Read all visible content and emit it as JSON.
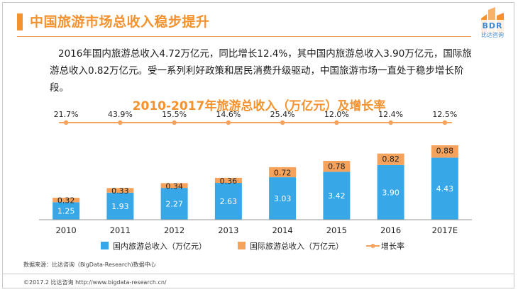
{
  "header": {
    "title": "中国旅游市场总收入稳步提升",
    "logo_text": "BDR",
    "logo_subtitle": "比达咨询"
  },
  "summary": {
    "text": "2016年国内旅游总收入4.72万亿元，同比增长12.4%，其中国内旅游总收入3.90万亿元，国际旅游总收入0.82万亿元。受一系列利好政策和居民消费升级驱动，中国旅游市场一直处于稳步增长阶段。"
  },
  "chart_data": {
    "type": "bar",
    "title": "2010-2017年旅游总收入（万亿元）及增长率",
    "categories": [
      "2010",
      "2011",
      "2012",
      "2013",
      "2014",
      "2015",
      "2016",
      "2017E"
    ],
    "series": [
      {
        "name": "国内旅游总收入（万亿元）",
        "values": [
          1.25,
          1.93,
          2.27,
          2.63,
          3.03,
          3.42,
          3.9,
          4.43
        ],
        "color": "#38a7e8"
      },
      {
        "name": "国际旅游总收入（万亿元）",
        "values": [
          0.32,
          0.33,
          0.34,
          0.36,
          0.72,
          0.78,
          0.82,
          0.88
        ],
        "color": "#f5a35c"
      }
    ],
    "growth": {
      "name": "增长率",
      "labels": [
        "21.7%",
        "43.9%",
        "15.5%",
        "14.6%",
        "25.4%",
        "12.0%",
        "12.4%",
        "12.5%"
      ],
      "color": "#f5a35c"
    },
    "stacked": true,
    "legend_position": "bottom",
    "grid": false
  },
  "footer": {
    "source": "数据来源：比达咨询（BigData-Research)数据中心",
    "copyright": "©2017.2  比达咨询  http://www.bigdata-research.cn/"
  },
  "colors": {
    "accent": "#f3922f",
    "domestic": "#38a7e8",
    "international": "#f5a35c"
  }
}
